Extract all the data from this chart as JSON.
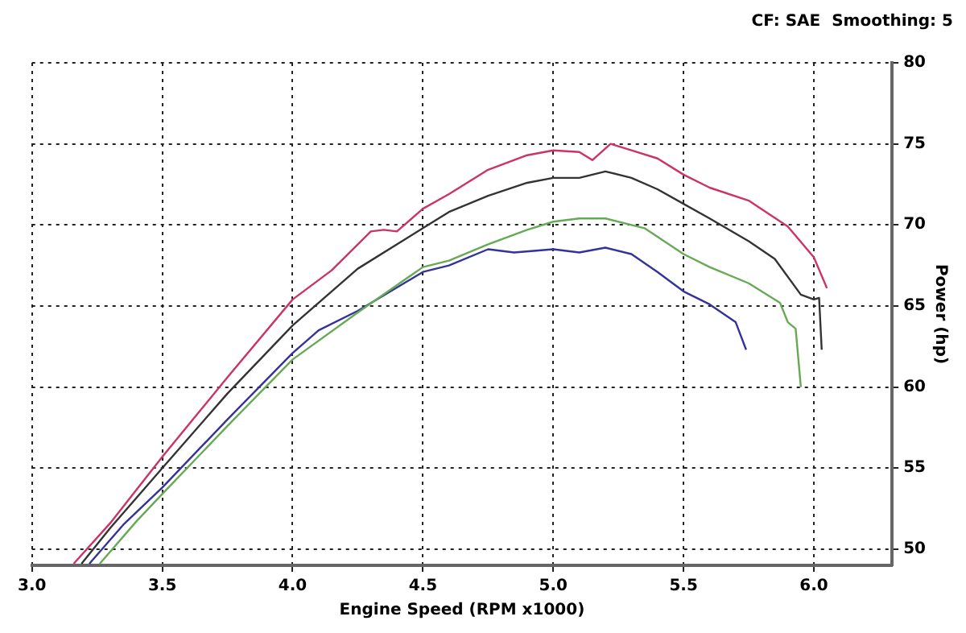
{
  "chart_data": {
    "type": "line",
    "xlabel": "Engine Speed (RPM x1000)",
    "ylabel": "Power (hp)",
    "annotations": [
      "CF: SAE  Smoothing: 5"
    ],
    "xlim": [
      3.0,
      6.3
    ],
    "ylim": [
      49,
      80
    ],
    "xticks": [
      {
        "value": 3,
        "label": "3.0"
      },
      {
        "value": 3.5,
        "label": "3.5"
      },
      {
        "value": 4,
        "label": "4.0"
      },
      {
        "value": 4.5,
        "label": "4.5"
      },
      {
        "value": 5,
        "label": "5.0"
      },
      {
        "value": 5.5,
        "label": "5.5"
      },
      {
        "value": 6,
        "label": "6.0"
      }
    ],
    "yticks": [
      50,
      55,
      60,
      65,
      70,
      75,
      80
    ],
    "grid": true,
    "legend": false,
    "marker": "none",
    "line_style": "solid",
    "series": [
      {
        "color": "#cc3366",
        "x": [
          3.16,
          3.3,
          3.5,
          3.75,
          4.0,
          4.15,
          4.3,
          4.35,
          4.4,
          4.5,
          4.6,
          4.75,
          4.9,
          5.0,
          5.1,
          5.15,
          5.22,
          5.3,
          5.4,
          5.5,
          5.6,
          5.75,
          5.9,
          6.0,
          6.05
        ],
        "values": [
          49.1,
          51.6,
          55.7,
          60.6,
          65.4,
          67.2,
          69.6,
          69.7,
          69.6,
          71.0,
          71.9,
          73.4,
          74.3,
          74.6,
          74.5,
          74.0,
          75.0,
          74.6,
          74.1,
          73.1,
          72.3,
          71.5,
          69.9,
          68.0,
          66.1
        ]
      },
      {
        "color": "#333333",
        "x": [
          3.19,
          3.3,
          3.5,
          3.75,
          4.0,
          4.25,
          4.5,
          4.6,
          4.75,
          4.9,
          5.0,
          5.1,
          5.2,
          5.3,
          5.4,
          5.5,
          5.6,
          5.75,
          5.85,
          5.95,
          6.0,
          6.02,
          6.03
        ],
        "values": [
          49.1,
          51.3,
          55.0,
          59.6,
          63.8,
          67.3,
          69.8,
          70.8,
          71.8,
          72.6,
          72.9,
          72.9,
          73.3,
          72.9,
          72.2,
          71.3,
          70.4,
          69.0,
          67.9,
          65.7,
          65.4,
          65.5,
          62.3
        ]
      },
      {
        "color": "#66aa55",
        "x": [
          3.26,
          3.4,
          3.5,
          3.75,
          4.0,
          4.25,
          4.5,
          4.6,
          4.75,
          4.9,
          5.0,
          5.1,
          5.2,
          5.35,
          5.5,
          5.6,
          5.75,
          5.87,
          5.9,
          5.93,
          5.95
        ],
        "values": [
          49.1,
          51.7,
          53.4,
          57.6,
          61.7,
          64.6,
          67.4,
          67.8,
          68.8,
          69.7,
          70.2,
          70.4,
          70.4,
          69.8,
          68.2,
          67.4,
          66.4,
          65.2,
          64.0,
          63.6,
          60.0
        ]
      },
      {
        "color": "#333399",
        "x": [
          3.22,
          3.35,
          3.5,
          3.75,
          4.0,
          4.1,
          4.25,
          4.5,
          4.6,
          4.75,
          4.85,
          5.0,
          5.1,
          5.2,
          5.3,
          5.4,
          5.5,
          5.6,
          5.7,
          5.74
        ],
        "values": [
          49.1,
          51.5,
          53.8,
          58.0,
          62.1,
          63.5,
          64.7,
          67.1,
          67.5,
          68.5,
          68.3,
          68.5,
          68.3,
          68.6,
          68.2,
          67.1,
          65.9,
          65.1,
          64.0,
          62.3
        ]
      }
    ]
  }
}
